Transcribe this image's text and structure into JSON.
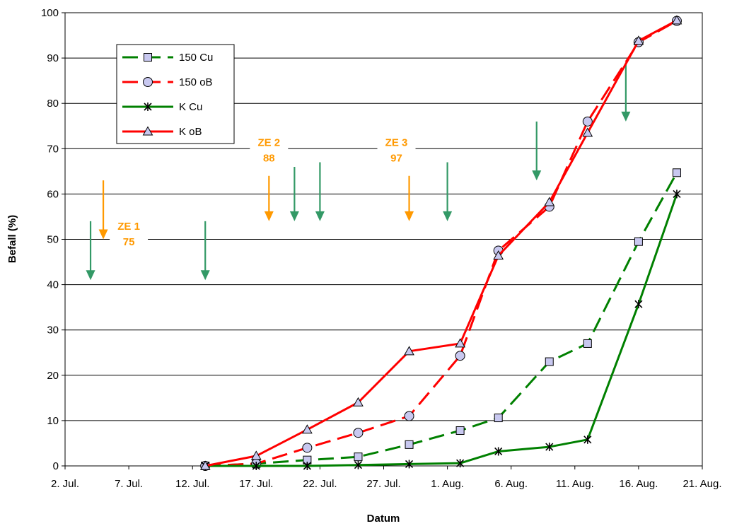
{
  "chart_data": {
    "type": "line",
    "title": "",
    "xlabel": "Datum",
    "ylabel": "Befall (%)",
    "ylim": [
      0,
      100
    ],
    "yticks": [
      0,
      10,
      20,
      30,
      40,
      50,
      60,
      70,
      80,
      90,
      100
    ],
    "xlim": [
      "2024-07-02",
      "2024-08-21"
    ],
    "xticks": [
      {
        "date": "2024-07-02",
        "label": "2. Jul."
      },
      {
        "date": "2024-07-07",
        "label": "7. Jul."
      },
      {
        "date": "2024-07-12",
        "label": "12. Jul."
      },
      {
        "date": "2024-07-17",
        "label": "17. Jul."
      },
      {
        "date": "2024-07-22",
        "label": "22. Jul."
      },
      {
        "date": "2024-07-27",
        "label": "27. Jul."
      },
      {
        "date": "2024-08-01",
        "label": "1. Aug."
      },
      {
        "date": "2024-08-06",
        "label": "6. Aug."
      },
      {
        "date": "2024-08-11",
        "label": "11. Aug."
      },
      {
        "date": "2024-08-16",
        "label": "16. Aug."
      },
      {
        "date": "2024-08-21",
        "label": "21. Aug."
      }
    ],
    "grid": "horizontal",
    "legend_position": "top-left",
    "series": [
      {
        "name": "150 Cu",
        "color": "#008000",
        "dashed": true,
        "marker": "square",
        "marker_fill": "#c8c8f0",
        "points": [
          {
            "x": "2024-07-13",
            "y": 0
          },
          {
            "x": "2024-07-17",
            "y": 0.5
          },
          {
            "x": "2024-07-21",
            "y": 1.3
          },
          {
            "x": "2024-07-25",
            "y": 2
          },
          {
            "x": "2024-07-29",
            "y": 4.7
          },
          {
            "x": "2024-08-02",
            "y": 7.8
          },
          {
            "x": "2024-08-05",
            "y": 10.6
          },
          {
            "x": "2024-08-09",
            "y": 23
          },
          {
            "x": "2024-08-12",
            "y": 27
          },
          {
            "x": "2024-08-16",
            "y": 49.5
          },
          {
            "x": "2024-08-19",
            "y": 64.7
          }
        ]
      },
      {
        "name": "150 oB",
        "color": "#ff0000",
        "dashed": true,
        "marker": "circle",
        "marker_fill": "#c8c8f0",
        "points": [
          {
            "x": "2024-07-13",
            "y": 0
          },
          {
            "x": "2024-07-17",
            "y": 0.5
          },
          {
            "x": "2024-07-21",
            "y": 4
          },
          {
            "x": "2024-07-25",
            "y": 7.3
          },
          {
            "x": "2024-07-29",
            "y": 11
          },
          {
            "x": "2024-08-02",
            "y": 24.3
          },
          {
            "x": "2024-08-05",
            "y": 47.5
          },
          {
            "x": "2024-08-09",
            "y": 57.2
          },
          {
            "x": "2024-08-12",
            "y": 76
          },
          {
            "x": "2024-08-16",
            "y": 93.5
          },
          {
            "x": "2024-08-19",
            "y": 98.2
          }
        ]
      },
      {
        "name": "K Cu",
        "color": "#008000",
        "dashed": false,
        "marker": "star",
        "marker_fill": "#c8c8f0",
        "points": [
          {
            "x": "2024-07-13",
            "y": 0
          },
          {
            "x": "2024-07-17",
            "y": 0
          },
          {
            "x": "2024-07-21",
            "y": 0
          },
          {
            "x": "2024-07-25",
            "y": 0.2
          },
          {
            "x": "2024-07-29",
            "y": 0.4
          },
          {
            "x": "2024-08-02",
            "y": 0.6
          },
          {
            "x": "2024-08-05",
            "y": 3.2
          },
          {
            "x": "2024-08-09",
            "y": 4.2
          },
          {
            "x": "2024-08-12",
            "y": 5.8
          },
          {
            "x": "2024-08-16",
            "y": 35.7
          },
          {
            "x": "2024-08-19",
            "y": 60
          }
        ]
      },
      {
        "name": "K oB",
        "color": "#ff0000",
        "dashed": false,
        "marker": "triangle",
        "marker_fill": "#c8c8f0",
        "points": [
          {
            "x": "2024-07-13",
            "y": 0
          },
          {
            "x": "2024-07-17",
            "y": 2.2
          },
          {
            "x": "2024-07-21",
            "y": 8
          },
          {
            "x": "2024-07-25",
            "y": 14
          },
          {
            "x": "2024-07-29",
            "y": 25.3
          },
          {
            "x": "2024-08-02",
            "y": 27
          },
          {
            "x": "2024-08-05",
            "y": 46.4
          },
          {
            "x": "2024-08-09",
            "y": 58.2
          },
          {
            "x": "2024-08-12",
            "y": 73.5
          },
          {
            "x": "2024-08-16",
            "y": 93.8
          },
          {
            "x": "2024-08-19",
            "y": 98.3
          }
        ]
      }
    ],
    "annotations": [
      {
        "label": "ZE 1",
        "value": "75",
        "x": "2024-07-07",
        "y": 51.5,
        "color": "#ff9900"
      },
      {
        "label": "ZE 2",
        "value": "88",
        "x": "2024-07-18",
        "y": 70,
        "color": "#ff9900"
      },
      {
        "label": "ZE 3",
        "value": "97",
        "x": "2024-07-28",
        "y": 70,
        "color": "#ff9900"
      }
    ],
    "arrows": [
      {
        "x": "2024-07-05",
        "y_from": 63,
        "y_to": 50,
        "color": "#ff9900"
      },
      {
        "x": "2024-07-04",
        "y_from": 54,
        "y_to": 41,
        "color": "#339966"
      },
      {
        "x": "2024-07-13",
        "y_from": 54,
        "y_to": 41,
        "color": "#339966"
      },
      {
        "x": "2024-07-18",
        "y_from": 64,
        "y_to": 54,
        "color": "#ff9900"
      },
      {
        "x": "2024-07-20",
        "y_from": 66,
        "y_to": 54,
        "color": "#339966"
      },
      {
        "x": "2024-07-22",
        "y_from": 67,
        "y_to": 54,
        "color": "#339966"
      },
      {
        "x": "2024-07-29",
        "y_from": 64,
        "y_to": 54,
        "color": "#ff9900"
      },
      {
        "x": "2024-08-01",
        "y_from": 67,
        "y_to": 54,
        "color": "#339966"
      },
      {
        "x": "2024-08-08",
        "y_from": 76,
        "y_to": 63,
        "color": "#339966"
      },
      {
        "x": "2024-08-15",
        "y_from": 89,
        "y_to": 76,
        "color": "#339966"
      }
    ]
  }
}
